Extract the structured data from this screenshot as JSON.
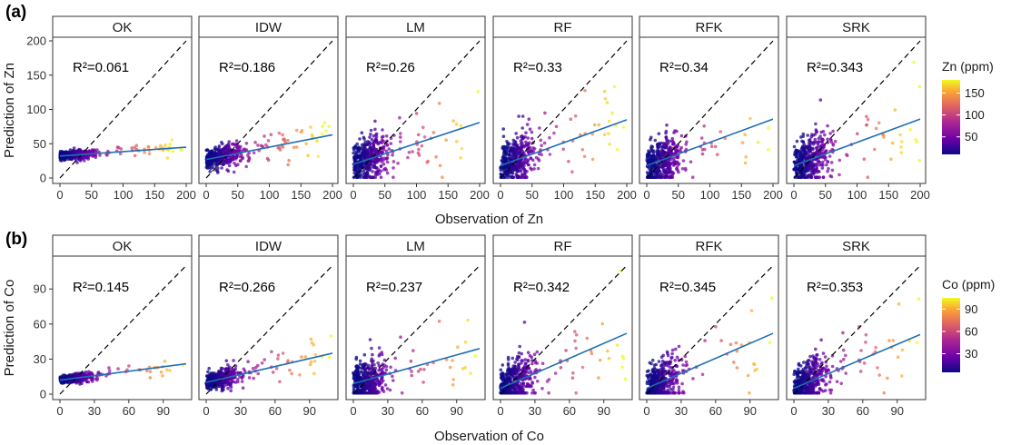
{
  "chart_data": [
    {
      "type": "scatter",
      "tag": "(a)",
      "xlabel": "Observation of Zn",
      "ylabel": "Prediction of Zn",
      "xlim": [
        0,
        200
      ],
      "ylim": [
        0,
        200
      ],
      "xticks": [
        0,
        50,
        100,
        150,
        200
      ],
      "yticks": [
        0,
        50,
        100,
        150,
        200
      ],
      "xtick_labels": [
        "0",
        "50",
        "100",
        "150",
        "200"
      ],
      "ytick_labels": [
        "0",
        "50",
        "100",
        "150",
        "200"
      ],
      "reference_line": "1:1 dashed",
      "legend": {
        "title": "Zn (ppm)",
        "placement": "right",
        "ticks": [
          50,
          100,
          150
        ],
        "tick_labels": [
          "50",
          "100",
          "150"
        ],
        "range": [
          10,
          180
        ]
      },
      "color_scale": [
        "#0d0887",
        "#6a00a8",
        "#b12a90",
        "#e16462",
        "#fca636",
        "#f0f921"
      ],
      "panels": [
        {
          "model": "OK",
          "r2_label": "R²=0.061",
          "fit": [
            [
              0,
              32
            ],
            [
              200,
              45
            ]
          ]
        },
        {
          "model": "IDW",
          "r2_label": "R²=0.186",
          "fit": [
            [
              0,
              27
            ],
            [
              200,
              63
            ]
          ]
        },
        {
          "model": "LM",
          "r2_label": "R²=0.26",
          "fit": [
            [
              0,
              20
            ],
            [
              200,
              81
            ]
          ]
        },
        {
          "model": "RF",
          "r2_label": "R²=0.33",
          "fit": [
            [
              0,
              18
            ],
            [
              200,
              85
            ]
          ]
        },
        {
          "model": "RFK",
          "r2_label": "R²=0.34",
          "fit": [
            [
              0,
              18
            ],
            [
              200,
              86
            ]
          ]
        },
        {
          "model": "SRK",
          "r2_label": "R²=0.343",
          "fit": [
            [
              0,
              18
            ],
            [
              200,
              86
            ]
          ]
        }
      ]
    },
    {
      "type": "scatter",
      "tag": "(b)",
      "xlabel": "Observation of Co",
      "ylabel": "Prediction of Co",
      "xlim": [
        0,
        110
      ],
      "ylim": [
        0,
        115
      ],
      "xticks": [
        0,
        30,
        60,
        90
      ],
      "yticks": [
        0,
        30,
        60,
        90
      ],
      "xtick_labels": [
        "0",
        "30",
        "60",
        "90"
      ],
      "ytick_labels": [
        "0",
        "30",
        "60",
        "90"
      ],
      "reference_line": "1:1 dashed",
      "legend": {
        "title": "Co (ppm)",
        "placement": "right",
        "ticks": [
          30,
          60,
          90
        ],
        "tick_labels": [
          "30",
          "60",
          "90"
        ],
        "range": [
          5,
          105
        ]
      },
      "color_scale": [
        "#0d0887",
        "#6a00a8",
        "#b12a90",
        "#e16462",
        "#fca636",
        "#f0f921"
      ],
      "panels": [
        {
          "model": "OK",
          "r2_label": "R²=0.145",
          "fit": [
            [
              0,
              12
            ],
            [
              110,
              26
            ]
          ]
        },
        {
          "model": "IDW",
          "r2_label": "R²=0.266",
          "fit": [
            [
              0,
              10
            ],
            [
              110,
              35
            ]
          ]
        },
        {
          "model": "LM",
          "r2_label": "R²=0.237",
          "fit": [
            [
              0,
              9
            ],
            [
              110,
              39
            ]
          ]
        },
        {
          "model": "RF",
          "r2_label": "R²=0.342",
          "fit": [
            [
              0,
              5
            ],
            [
              110,
              52
            ]
          ]
        },
        {
          "model": "RFK",
          "r2_label": "R²=0.345",
          "fit": [
            [
              0,
              5
            ],
            [
              110,
              52
            ]
          ]
        },
        {
          "model": "SRK",
          "r2_label": "R²=0.353",
          "fit": [
            [
              0,
              5
            ],
            [
              110,
              51
            ]
          ]
        }
      ]
    }
  ]
}
